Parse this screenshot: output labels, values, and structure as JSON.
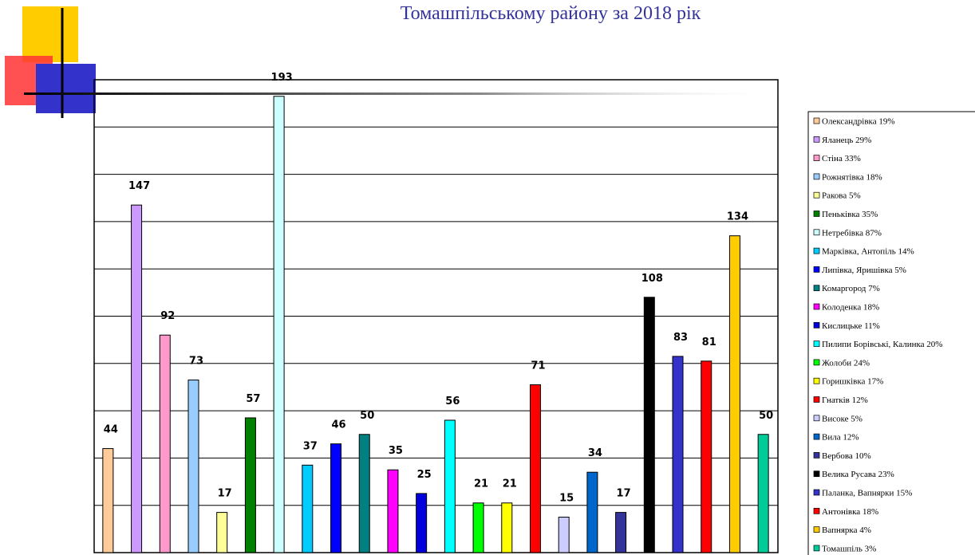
{
  "chart_data": {
    "type": "bar",
    "title": "Томашпільському району за 2018 рік",
    "categories": [
      "Олександрівка 19%",
      "Яланець 29%",
      "Стіна 33%",
      "Рожнятівка 18%",
      "Ракова  5%",
      "Пеньківка 35%",
      "Нетребівка 87%",
      "Марківка, Антопіль 14%",
      "Липівка, Яришівка 5%",
      "Комаргород 7%",
      "Колоденка 18%",
      "Кислицьке 11%",
      "Пилипи Борівські, Калинка 20%",
      "Жолоби 24%",
      "Горишківка 17%",
      "Гнатків 12%",
      "Високе 5%",
      "Вила 12%",
      "Вербова 10%",
      "Велика Русава 23%",
      "Паланка, Вапнярки 15%",
      "Антонівка 18%",
      "Вапнярка 4%",
      "Томашпіль 3%"
    ],
    "values": [
      44,
      147,
      92,
      73,
      17,
      57,
      193,
      37,
      46,
      50,
      35,
      25,
      56,
      21,
      21,
      71,
      15,
      34,
      17,
      108,
      83,
      81,
      134,
      50
    ],
    "colors": [
      "#ffcc99",
      "#cc99ff",
      "#ff99cc",
      "#99ccff",
      "#ffff99",
      "#008000",
      "#ccffff",
      "#00ccff",
      "#0000ff",
      "#008080",
      "#ff00ff",
      "#0000dd",
      "#00ffff",
      "#00ff00",
      "#ffff00",
      "#ff0000",
      "#ccccff",
      "#0066cc",
      "#333399",
      "#000000",
      "#3333cc",
      "#ff0000",
      "#ffcc00",
      "#00cc99"
    ],
    "ylim": [
      0,
      200
    ],
    "yticks": [
      0,
      20,
      40,
      60,
      80,
      100,
      120,
      140,
      160,
      180,
      200
    ],
    "grid": true
  }
}
